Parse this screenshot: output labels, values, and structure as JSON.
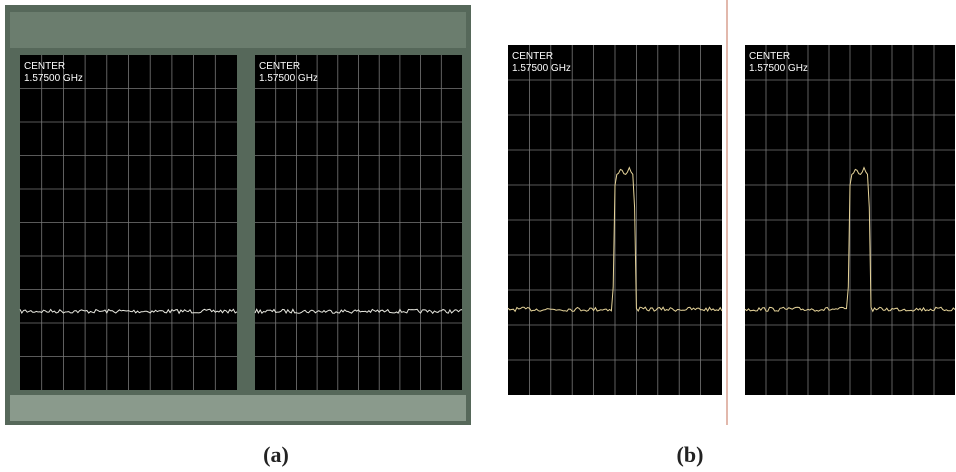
{
  "panels": [
    {
      "label": "(a)",
      "screens": [
        {
          "center_label": "CENTER",
          "center_freq": "1.57500 GHz"
        },
        {
          "center_label": "CENTER",
          "center_freq": "1.57500 GHz"
        }
      ]
    },
    {
      "label": "(b)",
      "screens": [
        {
          "center_label": "CENTER",
          "center_freq": "1.57500 GHz"
        },
        {
          "center_label": "CENTER",
          "center_freq": "1.57500 GHz"
        }
      ]
    }
  ]
}
